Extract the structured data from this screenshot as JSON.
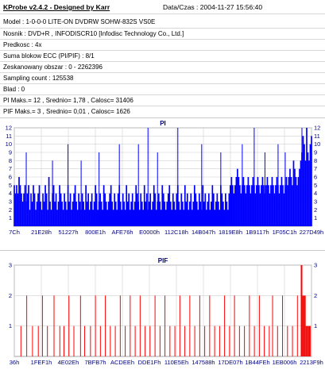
{
  "header": {
    "title": "KProbe v2.4.2 - Designed by Karr",
    "date_label": "Data/Czas : 2004-11-27 15:56:40"
  },
  "info_rows": [
    "Model : 1-0-0-0 LITE-ON DVDRW SOHW-832S  VS0E",
    "Nosnik : DVD+R , INFODISCR10 [Infodisc Technology Co., Ltd.]",
    "Predkosc : 4x",
    "Suma blokow ECC (PI/PIF) : 8/1",
    "Zeskanowany obszar : 0 - 2262396",
    "Sampling count : 125538",
    "Blad : 0",
    "PI Maks.= 12 , Srednio= 1,78 , Calosc= 31406",
    "PIF Maks.= 3 , Srednio= 0,01 , Calosc= 1626"
  ],
  "colors": {
    "pi_bars": "#0000ff",
    "pif_bars": "#ff0000",
    "title_blue": "#000080",
    "grid": "#d0d0d0",
    "axis_text": "#000080"
  },
  "chart_data": [
    {
      "type": "bar",
      "title": "PI",
      "ylim": [
        0,
        12
      ],
      "y_ticks": [
        1,
        2,
        3,
        4,
        5,
        6,
        7,
        8,
        9,
        10,
        11,
        12
      ],
      "x_tick_labels": [
        "7Ch",
        "21E28h",
        "51227h",
        "800E1h",
        "AFE76h",
        "E0000h",
        "112C18h",
        "14B047h",
        "1819E8h",
        "1B9117h",
        "1F05C1h",
        "227D49h"
      ],
      "grid": true,
      "series": [
        {
          "values": [
            5,
            4,
            5,
            4,
            6,
            5,
            4,
            3,
            4,
            5,
            3,
            4,
            5,
            2,
            4,
            3,
            5,
            4,
            2,
            3,
            4,
            5,
            3,
            2,
            4,
            3,
            5,
            4,
            2,
            6,
            3,
            2,
            4,
            5,
            3,
            4,
            2,
            3,
            5,
            4,
            3,
            2,
            4,
            3,
            2,
            5,
            3,
            4,
            2,
            3,
            4,
            5,
            3,
            2,
            4,
            3,
            2,
            4,
            3,
            2,
            5,
            3,
            4,
            2,
            3,
            4,
            2,
            3,
            5,
            4,
            2,
            3,
            4,
            3,
            2,
            5,
            4,
            3,
            2,
            3,
            4,
            5,
            3,
            2,
            4,
            3,
            2,
            4,
            5,
            3,
            2,
            4,
            3,
            2,
            5,
            3,
            4,
            2,
            3,
            4,
            2,
            3,
            5,
            4,
            3,
            2,
            4,
            3,
            2,
            5,
            3,
            4,
            2,
            3,
            4,
            2,
            3,
            5,
            4,
            2,
            3,
            4,
            3,
            2,
            5,
            4,
            3,
            2,
            3,
            4,
            5,
            3,
            2,
            4,
            3,
            2,
            4,
            5,
            3,
            2,
            4,
            3,
            2,
            5,
            3,
            4,
            2,
            3,
            4,
            2,
            3,
            5,
            4,
            3,
            2,
            4,
            3,
            2,
            5,
            3,
            4,
            2,
            3,
            4,
            2,
            3,
            5,
            4,
            2,
            3,
            4,
            3,
            2,
            5,
            4,
            3,
            2,
            4,
            3,
            2,
            4,
            5,
            6,
            5,
            4,
            5,
            6,
            7,
            6,
            5,
            4,
            5,
            6,
            5,
            4,
            5,
            6,
            5,
            4,
            5,
            6,
            5,
            4,
            5,
            6,
            5,
            4,
            5,
            6,
            5,
            4,
            5,
            6,
            5,
            4,
            5,
            6,
            5,
            4,
            5,
            6,
            5,
            4,
            5,
            6,
            5,
            4,
            5,
            6,
            5,
            6,
            7,
            6,
            5,
            8,
            7,
            6,
            5,
            6,
            7,
            8,
            9,
            11,
            10,
            8,
            12,
            9,
            8,
            10,
            11
          ],
          "spikes": [
            {
              "i": 12,
              "v": 9
            },
            {
              "i": 40,
              "v": 8
            },
            {
              "i": 56,
              "v": 10
            },
            {
              "i": 70,
              "v": 8
            },
            {
              "i": 89,
              "v": 9
            },
            {
              "i": 110,
              "v": 10
            },
            {
              "i": 130,
              "v": 10
            },
            {
              "i": 140,
              "v": 12
            },
            {
              "i": 150,
              "v": 9
            },
            {
              "i": 170,
              "v": 12
            },
            {
              "i": 195,
              "v": 10
            },
            {
              "i": 215,
              "v": 9
            },
            {
              "i": 238,
              "v": 10
            },
            {
              "i": 250,
              "v": 12
            },
            {
              "i": 262,
              "v": 9
            },
            {
              "i": 275,
              "v": 10
            },
            {
              "i": 283,
              "v": 9
            },
            {
              "i": 300,
              "v": 12
            }
          ]
        }
      ]
    },
    {
      "type": "bar",
      "title": "PIF",
      "ylim": [
        0,
        3
      ],
      "y_ticks": [
        1,
        2,
        3
      ],
      "x_tick_labels": [
        "36h",
        "1FEF1h",
        "4E02Eh",
        "7BFB7h",
        "ACDEEh",
        "DDE1Fh",
        "110E5Eh",
        "147588h",
        "17DE07h",
        "1B44FEh",
        "1EB006h",
        "2213F9h"
      ],
      "grid": true,
      "series": [
        {
          "points": [
            {
              "i": 8,
              "v": 1
            },
            {
              "i": 15,
              "v": 2
            },
            {
              "i": 22,
              "v": 1
            },
            {
              "i": 29,
              "v": 1
            },
            {
              "i": 34,
              "v": 2
            },
            {
              "i": 40,
              "v": 1
            },
            {
              "i": 48,
              "v": 2
            },
            {
              "i": 55,
              "v": 1
            },
            {
              "i": 60,
              "v": 1
            },
            {
              "i": 66,
              "v": 2
            },
            {
              "i": 72,
              "v": 1
            },
            {
              "i": 80,
              "v": 2
            },
            {
              "i": 85,
              "v": 1
            },
            {
              "i": 92,
              "v": 1
            },
            {
              "i": 98,
              "v": 2
            },
            {
              "i": 104,
              "v": 1
            },
            {
              "i": 110,
              "v": 2
            },
            {
              "i": 116,
              "v": 1
            },
            {
              "i": 122,
              "v": 1
            },
            {
              "i": 128,
              "v": 2
            },
            {
              "i": 134,
              "v": 1
            },
            {
              "i": 140,
              "v": 2
            },
            {
              "i": 146,
              "v": 1
            },
            {
              "i": 152,
              "v": 2
            },
            {
              "i": 158,
              "v": 1
            },
            {
              "i": 164,
              "v": 1
            },
            {
              "i": 170,
              "v": 2
            },
            {
              "i": 176,
              "v": 1
            },
            {
              "i": 182,
              "v": 2
            },
            {
              "i": 188,
              "v": 1
            },
            {
              "i": 194,
              "v": 1
            },
            {
              "i": 200,
              "v": 2
            },
            {
              "i": 206,
              "v": 1
            },
            {
              "i": 212,
              "v": 2
            },
            {
              "i": 218,
              "v": 1
            },
            {
              "i": 224,
              "v": 2
            },
            {
              "i": 230,
              "v": 1
            },
            {
              "i": 236,
              "v": 2
            },
            {
              "i": 242,
              "v": 1
            },
            {
              "i": 248,
              "v": 1
            },
            {
              "i": 254,
              "v": 2
            },
            {
              "i": 260,
              "v": 1
            },
            {
              "i": 266,
              "v": 2
            },
            {
              "i": 272,
              "v": 1
            },
            {
              "i": 278,
              "v": 1
            },
            {
              "i": 284,
              "v": 2
            },
            {
              "i": 290,
              "v": 1
            },
            {
              "i": 296,
              "v": 2
            },
            {
              "i": 302,
              "v": 1
            },
            {
              "i": 308,
              "v": 1
            },
            {
              "i": 312,
              "v": 2
            },
            {
              "i": 318,
              "v": 1
            },
            {
              "i": 324,
              "v": 2
            },
            {
              "i": 330,
              "v": 1
            },
            {
              "i": 336,
              "v": 1
            },
            {
              "i": 342,
              "v": 2
            },
            {
              "i": 347,
              "v": 3
            },
            {
              "i": 349,
              "v": 2
            },
            {
              "i": 351,
              "v": 2
            },
            {
              "i": 353,
              "v": 1
            },
            {
              "i": 355,
              "v": 1
            },
            {
              "i": 357,
              "v": 1
            }
          ]
        }
      ]
    }
  ]
}
